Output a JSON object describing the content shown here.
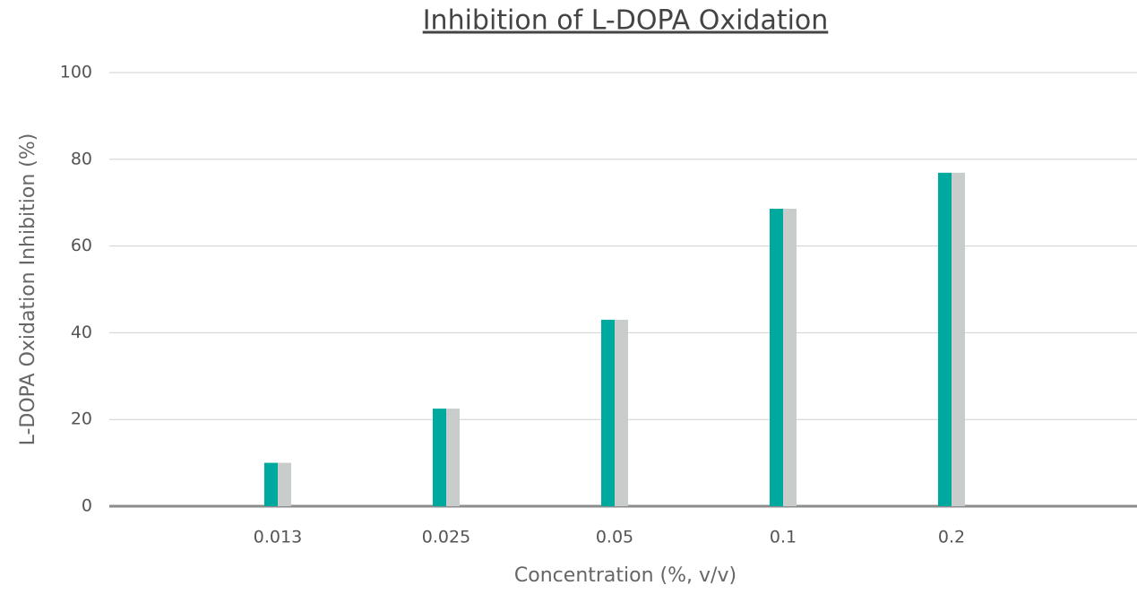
{
  "chart_data": {
    "type": "bar",
    "title": "Inhibition of L-DOPA Oxidation",
    "x_label": "Concentration (%, v/v)",
    "y_label": "L-DOPA Oxidation Inhibition (%)",
    "categories": [
      "0.013",
      "0.025",
      "0.05",
      "0.1",
      "0.2"
    ],
    "series": [
      {
        "color": "#00a99d",
        "values": [
          10,
          22.5,
          43,
          68.6,
          76.9
        ]
      },
      {
        "color": "#c8cccb",
        "values": [
          10,
          22.5,
          43,
          68.6,
          76.9
        ]
      }
    ],
    "ylim": [
      0,
      100
    ],
    "yticks": [
      0,
      20,
      40,
      60,
      80,
      100
    ],
    "grid": true
  }
}
